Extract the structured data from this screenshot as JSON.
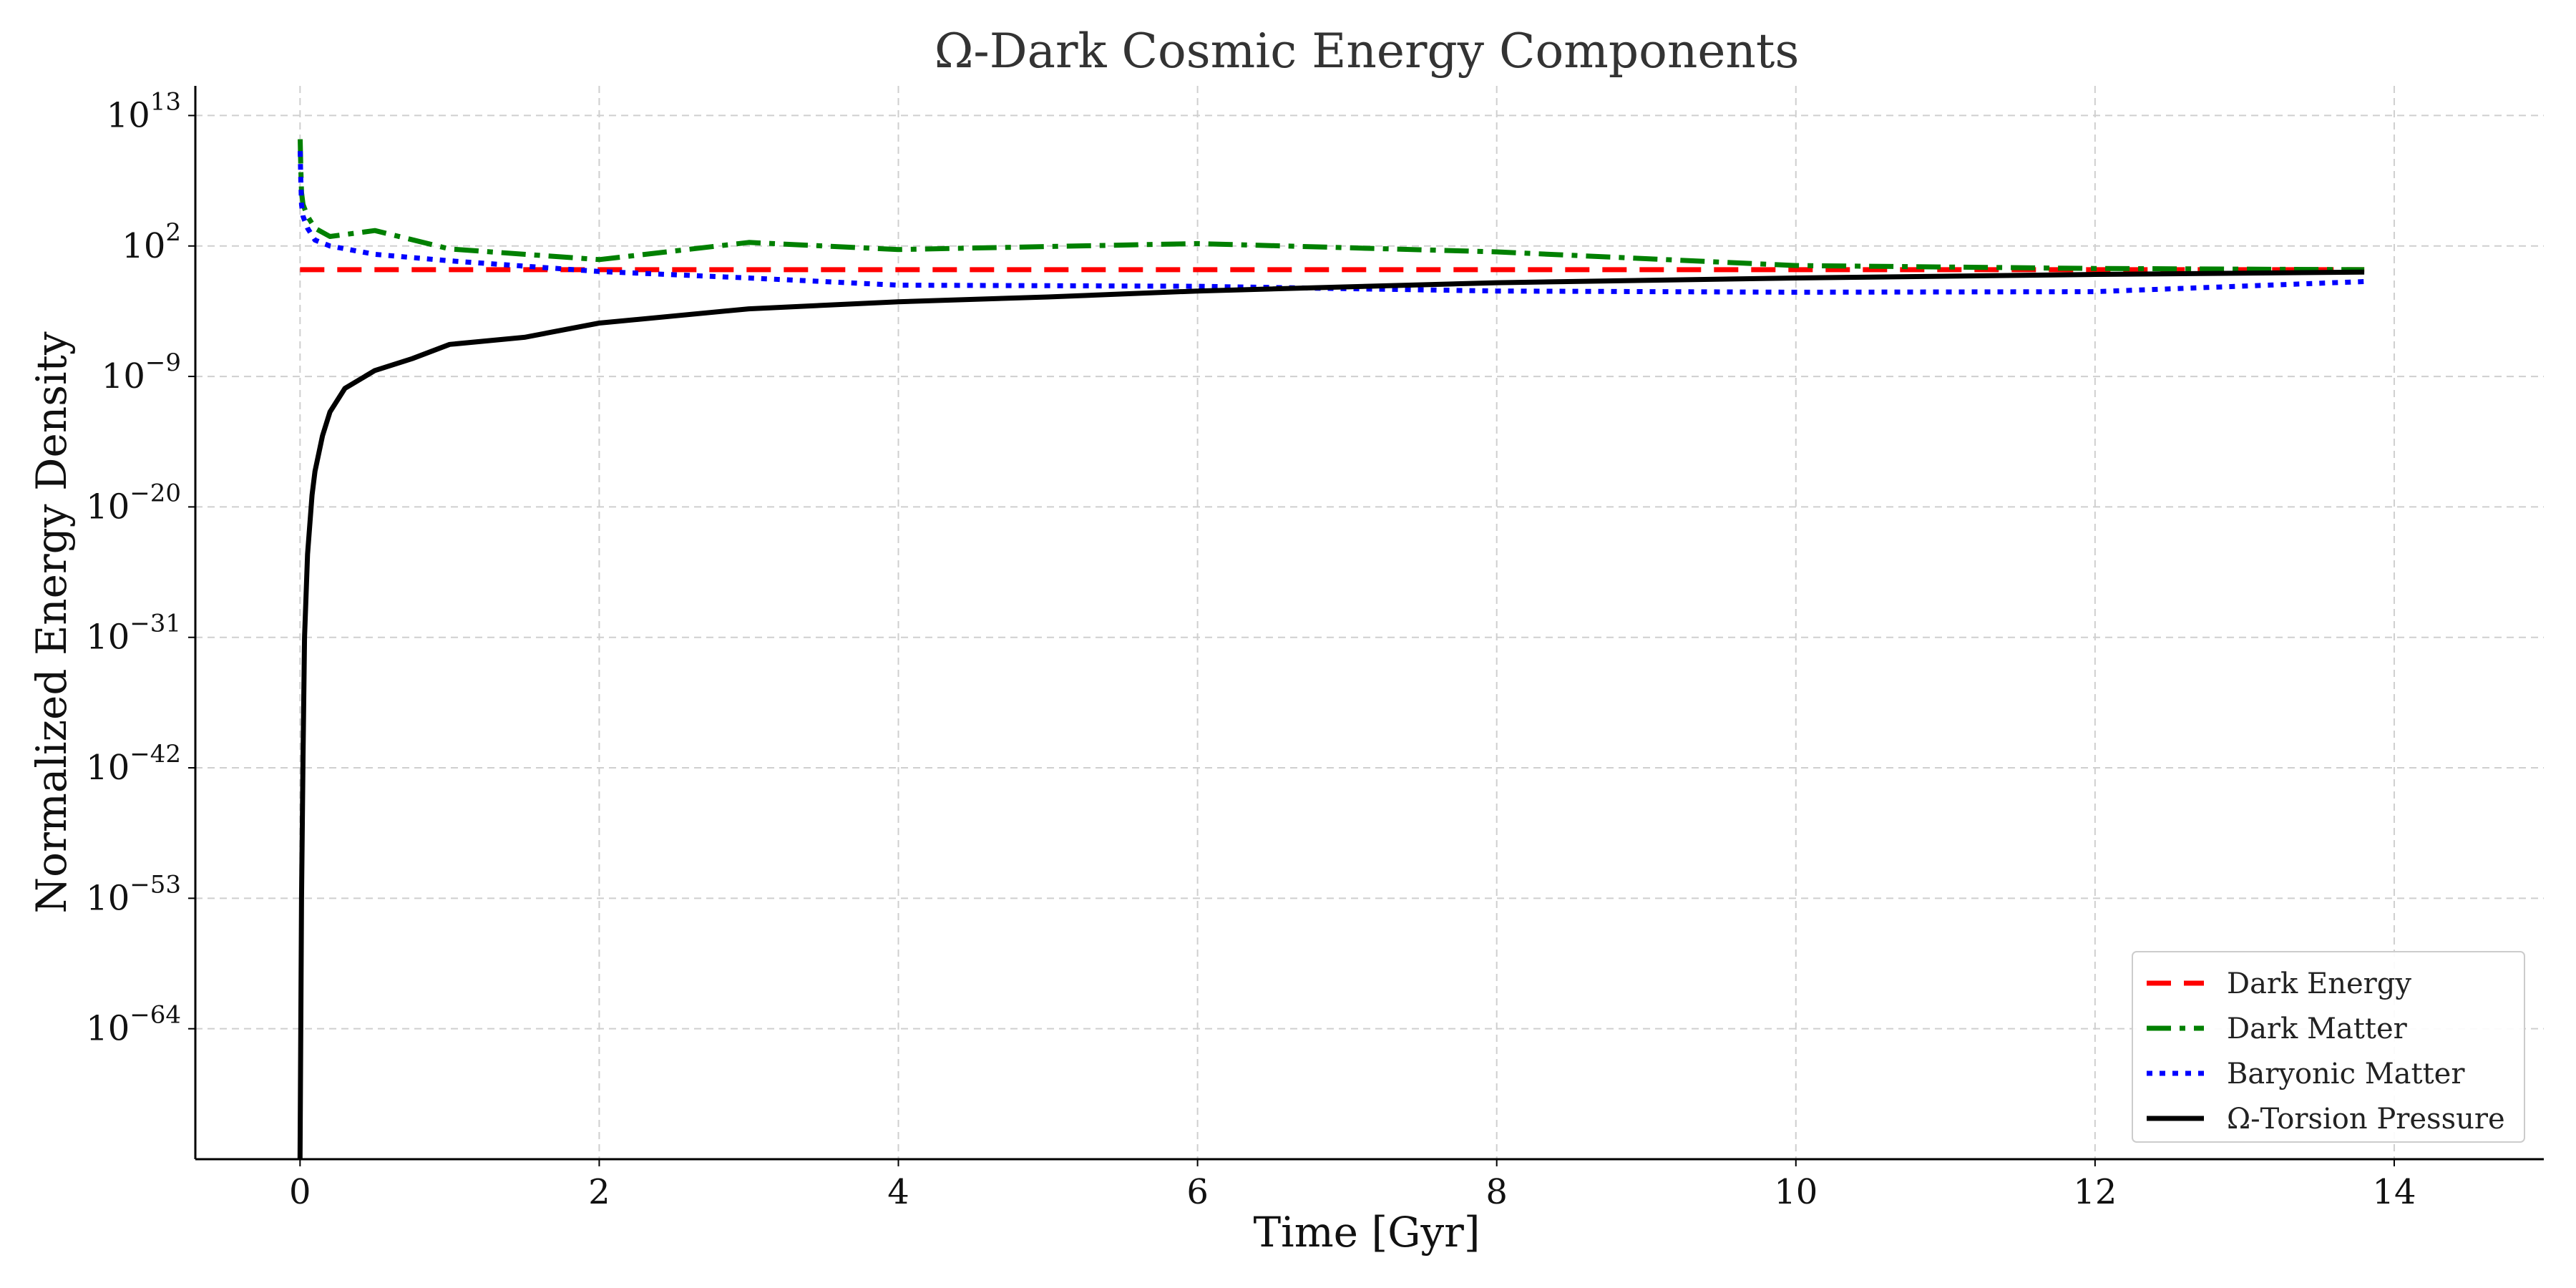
{
  "chart_data": {
    "type": "line",
    "title": "Ω-Dark Cosmic Energy Components",
    "xlabel": "Time [Gyr]",
    "ylabel": "Normalized Energy Density",
    "yscale": "log",
    "xlim": [
      -0.7,
      15.0
    ],
    "ylim_log10": [
      -75,
      15.5
    ],
    "x_ticks": [
      0,
      2,
      4,
      6,
      8,
      10,
      12,
      14
    ],
    "y_ticks": [
      {
        "base": "10",
        "exp": "13"
      },
      {
        "base": "10",
        "exp": "2"
      },
      {
        "base": "10",
        "exp": "−9"
      },
      {
        "base": "10",
        "exp": "−20"
      },
      {
        "base": "10",
        "exp": "−31"
      },
      {
        "base": "10",
        "exp": "−42"
      },
      {
        "base": "10",
        "exp": "−53"
      },
      {
        "base": "10",
        "exp": "−64"
      }
    ],
    "grid": true,
    "legend_position": "lower-right",
    "series": [
      {
        "name": "Dark Energy",
        "color": "#ff0000",
        "style": "dashed",
        "x": [
          0,
          2,
          4,
          6,
          8,
          10,
          12,
          13.8
        ],
        "log10_y": [
          0,
          0,
          0,
          0,
          0,
          0,
          0,
          0
        ]
      },
      {
        "name": "Dark Matter",
        "color": "#008000",
        "style": "dashdot",
        "x": [
          0.001,
          0.005,
          0.01,
          0.02,
          0.05,
          0.1,
          0.2,
          0.5,
          1,
          2,
          3,
          4,
          6,
          8,
          10,
          12,
          13.8
        ],
        "log10_y": [
          11,
          8.5,
          6.5,
          5.5,
          4.5,
          3.5,
          2.8,
          3.3,
          1.75,
          0.85,
          2.3,
          1.7,
          2.2,
          1.5,
          0.35,
          0.1,
          0
        ]
      },
      {
        "name": "Baryonic Matter",
        "color": "#0000ff",
        "style": "dotted",
        "x": [
          0.001,
          0.005,
          0.01,
          0.02,
          0.05,
          0.1,
          0.2,
          0.5,
          1,
          2,
          3,
          4,
          6,
          8,
          10,
          12,
          13.8
        ],
        "log10_y": [
          10,
          7.5,
          5.5,
          4.5,
          3.5,
          2.5,
          2,
          1.3,
          0.75,
          -0.15,
          -0.7,
          -1.3,
          -1.4,
          -1.8,
          -1.9,
          -1.85,
          -1.0
        ]
      },
      {
        "name": "Ω-Torsion Pressure",
        "color": "#000000",
        "style": "solid",
        "x": [
          0.0,
          0.01,
          0.02,
          0.03,
          0.05,
          0.08,
          0.1,
          0.15,
          0.2,
          0.3,
          0.5,
          0.75,
          1,
          1.5,
          2,
          3,
          4,
          5,
          6,
          8,
          10,
          12,
          13.8
        ],
        "log10_y": [
          -75,
          -53,
          -41,
          -31,
          -24,
          -19,
          -17,
          -14,
          -12,
          -10,
          -8.5,
          -7.5,
          -6.3,
          -5.7,
          -4.5,
          -3.3,
          -2.7,
          -2.3,
          -1.8,
          -1.1,
          -0.7,
          -0.4,
          -0.2
        ]
      }
    ]
  }
}
